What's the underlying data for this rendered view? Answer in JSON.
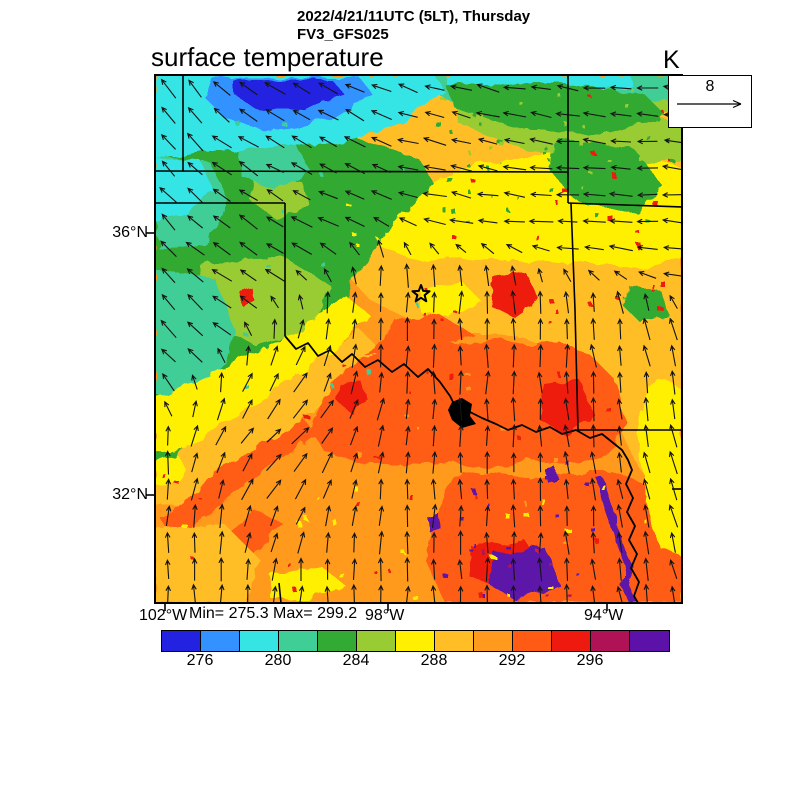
{
  "header": {
    "title_line1": "2022/4/21/11UTC (5LT), Thursday",
    "title_line2": "FV3_GFS025",
    "plot_title": "surface temperature",
    "units_label": "K"
  },
  "reference_vector": {
    "value": "8"
  },
  "axes": {
    "lat_labels": [
      "36°N",
      "32°N"
    ],
    "lon_labels": [
      "102°W",
      "98°W",
      "94°W"
    ]
  },
  "stats_label": "Min= 275.3 Max= 299.2",
  "colorbar": {
    "tick_labels": [
      "276",
      "280",
      "284",
      "288",
      "292",
      "296"
    ],
    "interval_k": 2,
    "segment_count": 13,
    "colors": [
      "#2222e0",
      "#3392ff",
      "#36e4e4",
      "#3fce96",
      "#33aa33",
      "#99cc33",
      "#ffef00",
      "#ffbe26",
      "#ff9a1e",
      "#ff5b14",
      "#ee1a10",
      "#b01355",
      "#5c12a8"
    ]
  },
  "map": {
    "features": [
      "state-borders",
      "red-river",
      "lakes",
      "wind-vectors",
      "station-marker-star"
    ],
    "line_color": "#000000"
  },
  "chart_data": {
    "type": "heatmap",
    "title": "surface temperature",
    "subtitle": "2022/4/21/11UTC (5LT), Thursday",
    "model": "FV3_GFS025",
    "units": "K",
    "x_axis": {
      "kind": "longitude",
      "ticks": [
        "102°W",
        "98°W",
        "94°W"
      ]
    },
    "y_axis": {
      "kind": "latitude",
      "ticks": [
        "36°N",
        "32°N"
      ]
    },
    "field_min": 275.3,
    "field_max": 299.2,
    "color_scale": {
      "labeled_boundaries": [
        276,
        280,
        284,
        288,
        292,
        296
      ],
      "interval": 2,
      "colors": [
        "#2222e0",
        "#3392ff",
        "#36e4e4",
        "#3fce96",
        "#33aa33",
        "#99cc33",
        "#ffef00",
        "#ffbe26",
        "#ff9a1e",
        "#ff5b14",
        "#ee1a10",
        "#b01355",
        "#5c12a8"
      ]
    },
    "wind_overlay": {
      "reference_arrow_value": 8,
      "pattern": "easterly flow in north veering to strong southerly flow in south"
    },
    "regions": [
      {
        "area": "far-north cold pool (blue patch)",
        "approx_K": "274-278"
      },
      {
        "area": "northwest panhandles (cyan/teal/green)",
        "approx_K": "278-284"
      },
      {
        "area": "north-central band (yellow/gold)",
        "approx_K": "286-290"
      },
      {
        "area": "central and southern warm sector (orange)",
        "approx_K": "290-294"
      },
      {
        "area": "warmest pockets and water bodies (red/purple)",
        "approx_K": "294-300"
      }
    ]
  }
}
